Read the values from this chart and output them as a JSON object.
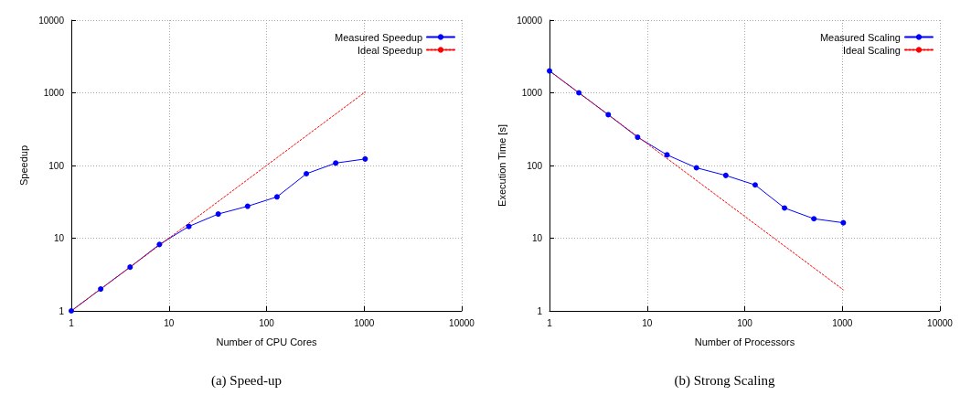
{
  "chart_data": [
    {
      "type": "line",
      "title": "(a) Speed-up",
      "xlabel": "Number of CPU Cores",
      "ylabel": "Speedup",
      "log": "xy",
      "xlim": [
        1,
        10000
      ],
      "xticks": [
        1,
        10,
        100,
        1000,
        10000
      ],
      "ylim": [
        1,
        10000
      ],
      "yticks": [
        1,
        10,
        100,
        1000,
        10000
      ],
      "grid": true,
      "legend": "top right",
      "series": [
        {
          "name": "Measured Speedup",
          "color": "#0000ff",
          "marker": "circle",
          "line_style": "solid",
          "x": [
            1,
            2,
            4,
            8,
            16,
            32,
            64,
            128,
            256,
            512,
            1024
          ],
          "values": [
            1,
            2,
            4,
            8.2,
            14.5,
            21.5,
            27.5,
            37,
            77,
            108,
            123
          ]
        },
        {
          "name": "Ideal Speedup",
          "color": "#ff0000",
          "marker": "none",
          "line_style": "dotted",
          "x": [
            1,
            1024
          ],
          "values": [
            1,
            1024
          ]
        }
      ]
    },
    {
      "type": "line",
      "title": "(b) Strong Scaling",
      "xlabel": "Number of Processors",
      "ylabel": "Execution Time [s]",
      "log": "xy",
      "xlim": [
        1,
        10000
      ],
      "xticks": [
        1,
        10,
        100,
        1000,
        10000
      ],
      "ylim": [
        1,
        10000
      ],
      "yticks": [
        1,
        10,
        100,
        1000,
        10000
      ],
      "grid": true,
      "legend": "top right",
      "series": [
        {
          "name": "Measured Scaling",
          "color": "#0000ff",
          "marker": "circle",
          "line_style": "solid",
          "x": [
            1,
            2,
            4,
            8,
            16,
            32,
            64,
            128,
            256,
            512,
            1024
          ],
          "values": [
            2000,
            1000,
            500,
            245,
            140,
            93,
            73,
            54,
            26,
            18.5,
            16.3
          ]
        },
        {
          "name": "Ideal Scaling",
          "color": "#ff0000",
          "marker": "none",
          "line_style": "dotted",
          "x": [
            1,
            1024
          ],
          "values": [
            2000,
            1.95
          ]
        }
      ]
    }
  ]
}
